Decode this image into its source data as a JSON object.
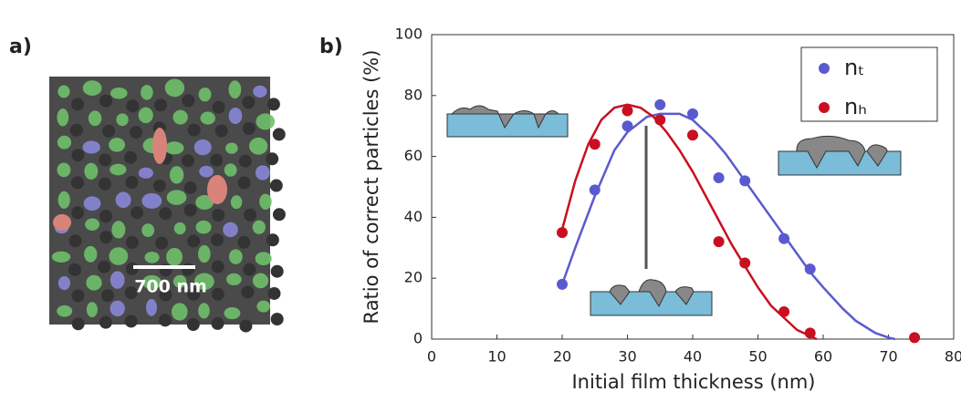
{
  "panel_a": {
    "label": "a)",
    "scale_bar": "700 nm"
  },
  "chart_data": {
    "type": "scatter",
    "panel_label": "b)",
    "xlabel": "Initial film thickness (nm)",
    "ylabel": "Ratio of correct particles (%)",
    "xlim": [
      0,
      80
    ],
    "xticks": [
      0,
      10,
      20,
      30,
      40,
      50,
      60,
      70,
      80
    ],
    "ylim": [
      0,
      100
    ],
    "yticks": [
      0,
      20,
      40,
      60,
      80,
      100
    ],
    "legend": "upper right",
    "series": [
      {
        "name": "nₜ",
        "color": "#5a5ad0",
        "x": [
          20,
          25,
          30,
          35,
          40,
          44,
          48,
          54,
          58
        ],
        "values": [
          18,
          49,
          70,
          77,
          74,
          53,
          52,
          33,
          23
        ],
        "fit_x": [
          20,
          22,
          25,
          28,
          30,
          33,
          35,
          38,
          40,
          43,
          45,
          48,
          50,
          53,
          55,
          58,
          60,
          63,
          65,
          68,
          70,
          71
        ],
        "fit_values": [
          18,
          30,
          47,
          62,
          68,
          73,
          74,
          74,
          72,
          66,
          61,
          52,
          46,
          37,
          31,
          22,
          17,
          10,
          6,
          2,
          0.5,
          0
        ]
      },
      {
        "name": "nₕ",
        "color": "#c81020",
        "x": [
          20,
          25,
          30,
          35,
          40,
          44,
          48,
          54,
          58,
          74
        ],
        "values": [
          35,
          64,
          75,
          72,
          67,
          32,
          25,
          9,
          2,
          0.5
        ],
        "fit_x": [
          20,
          22,
          24,
          26,
          28,
          30,
          32,
          34,
          36,
          38,
          40,
          42,
          44,
          46,
          48,
          50,
          52,
          54,
          56,
          58,
          59
        ],
        "fit_values": [
          36,
          52,
          64,
          72,
          76,
          77,
          76,
          73,
          68,
          62,
          55,
          47,
          39,
          31,
          24,
          17,
          11,
          7,
          3,
          1,
          0
        ]
      }
    ]
  }
}
